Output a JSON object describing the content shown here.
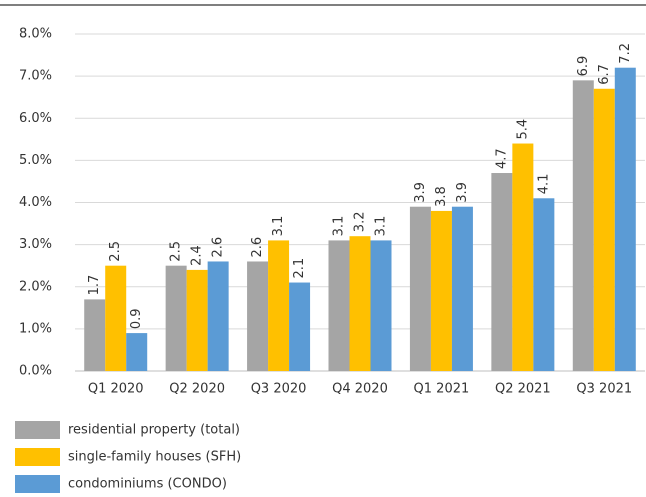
{
  "chart_data": {
    "type": "bar",
    "categories": [
      "Q1 2020",
      "Q2 2020",
      "Q3 2020",
      "Q4 2020",
      "Q1 2021",
      "Q2 2021",
      "Q3 2021"
    ],
    "series": [
      {
        "name": "residential property (total)",
        "color": "#a5a5a5",
        "values": [
          1.7,
          2.5,
          2.6,
          3.1,
          3.9,
          4.7,
          6.9
        ]
      },
      {
        "name": "single-family houses (SFH)",
        "color": "#ffc000",
        "values": [
          2.5,
          2.4,
          3.1,
          3.2,
          3.8,
          5.4,
          6.7
        ]
      },
      {
        "name": "condominiums (CONDO)",
        "color": "#5b9bd5",
        "values": [
          0.9,
          2.6,
          2.1,
          3.1,
          3.9,
          4.1,
          7.2
        ]
      }
    ],
    "ylim": [
      0,
      8
    ],
    "yticks": [
      {
        "value": 0,
        "label": "0.0%"
      },
      {
        "value": 1,
        "label": "1.0%"
      },
      {
        "value": 2,
        "label": "2.0%"
      },
      {
        "value": 3,
        "label": "3.0%"
      },
      {
        "value": 4,
        "label": "4.0%"
      },
      {
        "value": 5,
        "label": "5.0%"
      },
      {
        "value": 6,
        "label": "6.0%"
      },
      {
        "value": 7,
        "label": "7.0%"
      },
      {
        "value": 8,
        "label": "8.0%"
      }
    ],
    "grid": true
  }
}
